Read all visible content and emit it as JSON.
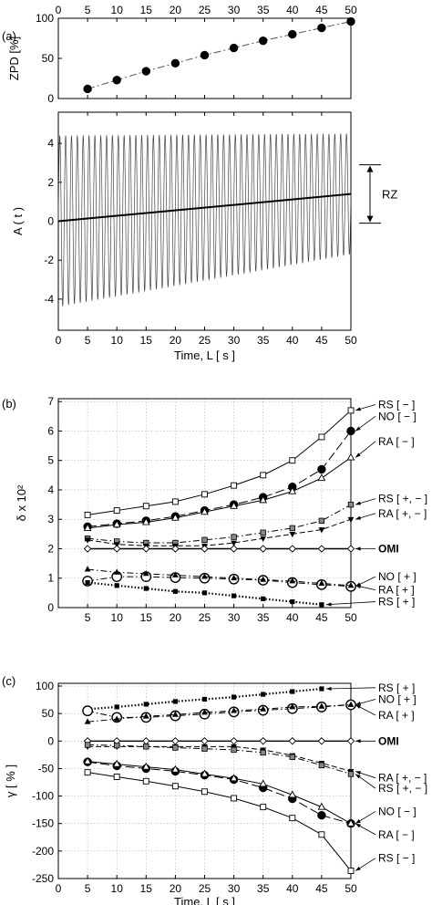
{
  "chart_data": [
    {
      "id": "a-top",
      "panel_label": "(a)",
      "type": "line",
      "ylabel": "ZPD [%]",
      "xlim": [
        0,
        50
      ],
      "ylim": [
        0,
        100
      ],
      "xticks": [
        0,
        5,
        10,
        15,
        20,
        25,
        30,
        35,
        40,
        45,
        50
      ],
      "yticks": [
        0,
        50,
        100
      ],
      "series": [
        {
          "x": [
            5,
            10,
            15,
            20,
            25,
            30,
            35,
            40,
            45,
            50
          ],
          "values": [
            12,
            23,
            34,
            44,
            54,
            63,
            72,
            80,
            88,
            96
          ]
        }
      ]
    },
    {
      "id": "a-bottom",
      "type": "line",
      "xlabel": "Time, L [ s ]",
      "ylabel": "A ( t )",
      "xlim": [
        0,
        50
      ],
      "ylim": [
        -5.6,
        5.6
      ],
      "xticks": [
        0,
        5,
        10,
        15,
        20,
        25,
        30,
        35,
        40,
        45,
        50
      ],
      "yticks": [
        -4,
        -2,
        0,
        2,
        4
      ],
      "oscillation": {
        "start_amplitude": 4.4,
        "end_amplitude": 3.1,
        "cycles": 50,
        "offset_end": 1.4
      },
      "trend_line": {
        "x": [
          0,
          50
        ],
        "values": [
          0,
          1.4
        ]
      },
      "bracket_label": "RZ",
      "bracket_range": [
        -0.1,
        2.9
      ]
    },
    {
      "id": "b",
      "panel_label": "(b)",
      "type": "line",
      "ylabel": "δ x 10²",
      "xlim": [
        0,
        50
      ],
      "ylim": [
        0,
        7.1
      ],
      "xticks": [
        5,
        10,
        15,
        20,
        25,
        30,
        35,
        40,
        45,
        50
      ],
      "yticks": [
        0,
        1,
        2,
        3,
        4,
        5,
        6,
        7
      ],
      "x": [
        5,
        10,
        15,
        20,
        25,
        30,
        35,
        40,
        45,
        50
      ],
      "series": [
        {
          "label": "RS [ − ]",
          "values": [
            3.15,
            3.3,
            3.45,
            3.6,
            3.85,
            4.15,
            4.5,
            5.0,
            5.8,
            6.7
          ],
          "marker": "square-open",
          "dash": "solid",
          "label_y": 6.9
        },
        {
          "label": "NO [ − ]",
          "values": [
            2.75,
            2.85,
            2.95,
            3.1,
            3.3,
            3.5,
            3.75,
            4.1,
            4.7,
            6.0
          ],
          "marker": "circle-big",
          "dash": "long",
          "label_y": 6.5
        },
        {
          "label": "RA [ − ]",
          "values": [
            2.7,
            2.82,
            2.9,
            3.05,
            3.25,
            3.45,
            3.65,
            3.95,
            4.4,
            5.1
          ],
          "marker": "triangle-open",
          "dash": "solid",
          "label_y": 5.65
        },
        {
          "label": "RS [ +, − ]",
          "values": [
            2.35,
            2.25,
            2.2,
            2.2,
            2.3,
            2.4,
            2.55,
            2.7,
            2.95,
            3.5
          ],
          "marker": "square-half",
          "dash": "dashdot",
          "label_y": 3.7
        },
        {
          "label": "RA [ +, − ]",
          "values": [
            2.3,
            2.15,
            2.1,
            2.1,
            2.1,
            2.2,
            2.35,
            2.5,
            2.65,
            3.0
          ],
          "marker": "triangle-down",
          "dash": "dash",
          "label_y": 3.2
        },
        {
          "label": "OMI",
          "values": [
            2,
            2,
            2,
            2,
            2,
            2,
            2,
            2,
            2,
            2
          ],
          "marker": "diamond-open",
          "dash": "solid",
          "label_y": 2.0,
          "bold": true
        },
        {
          "label": "NO [ + ]",
          "values": [
            0.9,
            1.05,
            1.05,
            1.02,
            1.0,
            0.97,
            0.93,
            0.85,
            0.78,
            0.72
          ],
          "marker": "circle-open",
          "dash": "dashdot",
          "label_y": 1.05
        },
        {
          "label": "RA [ + ]",
          "values": [
            1.3,
            1.2,
            1.15,
            1.1,
            1.05,
            1.0,
            0.95,
            0.9,
            0.82,
            0.75
          ],
          "marker": "triangle-filled",
          "dash": "dashdot",
          "label_y": 0.6
        },
        {
          "label": "RS [ + ]",
          "values": [
            0.85,
            0.75,
            0.65,
            0.55,
            0.5,
            0.4,
            0.3,
            0.2,
            0.1,
            null
          ],
          "marker": "square-filled",
          "dash": "dotted",
          "label_y": 0.2
        }
      ]
    },
    {
      "id": "c",
      "panel_label": "(c)",
      "type": "line",
      "xlabel": "Time, L [ s ]",
      "ylabel": "γ [ % ]",
      "xlim": [
        0,
        50
      ],
      "ylim": [
        -250,
        105
      ],
      "xticks": [
        0,
        5,
        10,
        15,
        20,
        25,
        30,
        35,
        40,
        45,
        50
      ],
      "yticks": [
        -250,
        -200,
        -150,
        -100,
        -50,
        0,
        50,
        100
      ],
      "x": [
        5,
        10,
        15,
        20,
        25,
        30,
        35,
        40,
        45,
        50
      ],
      "series": [
        {
          "label": "RS [ + ]",
          "values": [
            58,
            62,
            67,
            72,
            76,
            80,
            85,
            90,
            95,
            null
          ],
          "marker": "square-filled",
          "dash": "dotted",
          "label_y": 97
        },
        {
          "label": "NO [ + ]",
          "values": [
            55,
            43,
            43,
            46,
            49,
            53,
            56,
            59,
            62,
            66
          ],
          "marker": "circle-open",
          "dash": "dashdot",
          "label_y": 76
        },
        {
          "label": "RA [ + ]",
          "values": [
            35,
            40,
            45,
            48,
            52,
            55,
            58,
            62,
            63,
            66
          ],
          "marker": "triangle-filled",
          "dash": "dashdot",
          "label_y": 47
        },
        {
          "label": "OMI",
          "values": [
            0,
            0,
            0,
            0,
            0,
            0,
            0,
            0,
            0,
            0
          ],
          "marker": "diamond-open",
          "dash": "solid",
          "label_y": 0,
          "bold": true
        },
        {
          "label": "RA [ +, − ]",
          "values": [
            -10,
            -10,
            -10,
            -10,
            -10,
            -10,
            -16,
            -26,
            -40,
            -55
          ],
          "marker": "triangle-down",
          "dash": "dash",
          "label_y": -67
        },
        {
          "label": "RS [ +, − ]",
          "values": [
            -7,
            -8,
            -10,
            -12,
            -14,
            -16,
            -21,
            -29,
            -44,
            -60
          ],
          "marker": "square-half",
          "dash": "dashdot",
          "label_y": -86
        },
        {
          "label": "NO [ − ]",
          "values": [
            -38,
            -45,
            -50,
            -55,
            -62,
            -70,
            -85,
            -105,
            -135,
            -150
          ],
          "marker": "circle-big",
          "dash": "long",
          "label_y": -128
        },
        {
          "label": "RA [ − ]",
          "values": [
            -37,
            -42,
            -47,
            -52,
            -60,
            -68,
            -78,
            -98,
            -120,
            -150
          ],
          "marker": "triangle-open",
          "dash": "solid",
          "label_y": -170
        },
        {
          "label": "RS [ − ]",
          "values": [
            -57,
            -65,
            -73,
            -82,
            -92,
            -104,
            -120,
            -140,
            -170,
            -236
          ],
          "marker": "square-open",
          "dash": "solid",
          "label_y": -213
        }
      ]
    }
  ]
}
